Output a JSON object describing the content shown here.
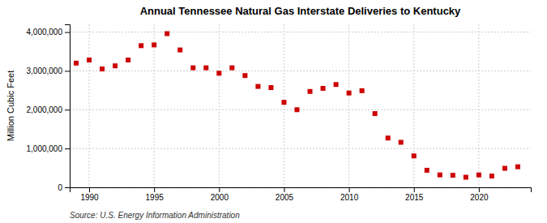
{
  "chart_data": {
    "type": "scatter",
    "title": "Annual Tennessee Natural Gas Interstate Deliveries to Kentucky",
    "ylabel": "Million Cubic Feet",
    "annotations": [
      "Source: U.S. Energy Information Administration"
    ],
    "x": [
      1989,
      1990,
      1991,
      1992,
      1993,
      1994,
      1995,
      1996,
      1997,
      1998,
      1999,
      2000,
      2001,
      2002,
      2003,
      2004,
      2005,
      2006,
      2007,
      2008,
      2009,
      2010,
      2011,
      2012,
      2013,
      2014,
      2015,
      2016,
      2017,
      2018,
      2019,
      2020,
      2021,
      2022,
      2023
    ],
    "values": [
      3200000,
      3280000,
      3050000,
      3130000,
      3280000,
      3650000,
      3670000,
      3960000,
      3540000,
      3080000,
      3080000,
      2940000,
      3080000,
      2880000,
      2600000,
      2570000,
      2190000,
      2000000,
      2470000,
      2550000,
      2650000,
      2430000,
      2490000,
      1900000,
      1270000,
      1160000,
      810000,
      440000,
      320000,
      310000,
      260000,
      320000,
      290000,
      490000,
      530000
    ],
    "color": "#cc0000",
    "marker": "square",
    "xlim": [
      1988.5,
      2024
    ],
    "xticks": [
      1990,
      1995,
      2000,
      2005,
      2010,
      2015,
      2020
    ],
    "ylim": [
      0,
      4200000
    ],
    "yticks": [
      0,
      {
        "value": 1000000,
        "label": "1,000,000"
      },
      {
        "value": 2000000,
        "label": "2,000,000"
      },
      {
        "value": 3000000,
        "label": "3,000,000"
      },
      {
        "value": 4000000,
        "label": "4,000,000"
      }
    ],
    "grid": true
  }
}
